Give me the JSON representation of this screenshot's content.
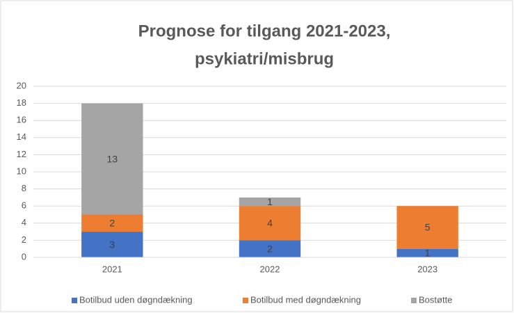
{
  "chart_data": {
    "type": "stacked-bar",
    "title": [
      "Prognose for tilgang 2021-2023,",
      "psykiatri/misbrug"
    ],
    "categories": [
      "2021",
      "2022",
      "2023"
    ],
    "series": [
      {
        "name": "Botilbud uden døgndækning",
        "color": "#4472c4",
        "values": [
          3,
          2,
          1
        ]
      },
      {
        "name": "Botilbud med døgndækning",
        "color": "#ed7d31",
        "values": [
          2,
          4,
          5
        ]
      },
      {
        "name": "Bostøtte",
        "color": "#a5a5a5",
        "values": [
          13,
          1,
          null
        ]
      }
    ],
    "ylim": [
      0,
      20
    ],
    "yticks": [
      0,
      2,
      4,
      6,
      8,
      10,
      12,
      14,
      16,
      18,
      20
    ],
    "grid": true,
    "legend": "bottom"
  }
}
